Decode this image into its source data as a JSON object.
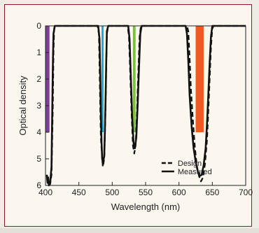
{
  "chart_data": {
    "type": "line",
    "title": "",
    "xlabel": "Wavelength (nm)",
    "ylabel": "Optical density",
    "xlim": [
      400,
      700
    ],
    "ylim": [
      0,
      6
    ],
    "y_inverted": true,
    "x_ticks": [
      400,
      450,
      500,
      550,
      600,
      650,
      700
    ],
    "y_ticks": [
      0,
      1,
      2,
      3,
      4,
      5,
      6
    ],
    "grid": false,
    "legend_position": "bottom-right",
    "series": [
      {
        "name": "Design",
        "style": "dashed",
        "color": "#111111",
        "points": [
          [
            405,
            6.0
          ],
          [
            407,
            5.95
          ],
          [
            409,
            5.6
          ],
          [
            411,
            3.0
          ],
          [
            412,
            1.0
          ],
          [
            413,
            0.1
          ],
          [
            414,
            0.0
          ],
          [
            478,
            0.0
          ],
          [
            480,
            0.3
          ],
          [
            481,
            1.5
          ],
          [
            482,
            3.0
          ],
          [
            483,
            4.2
          ],
          [
            485,
            5.0
          ],
          [
            486,
            5.3
          ],
          [
            488,
            5.0
          ],
          [
            489,
            4.2
          ],
          [
            490,
            3.0
          ],
          [
            491,
            1.5
          ],
          [
            492,
            0.3
          ],
          [
            494,
            0.0
          ],
          [
            523,
            0.0
          ],
          [
            525,
            0.4
          ],
          [
            527,
            1.8
          ],
          [
            529,
            3.3
          ],
          [
            531,
            4.5
          ],
          [
            533,
            4.8
          ],
          [
            535,
            4.5
          ],
          [
            537,
            3.3
          ],
          [
            539,
            1.8
          ],
          [
            541,
            0.4
          ],
          [
            543,
            0.0
          ],
          [
            612,
            0.0
          ],
          [
            614,
            0.2
          ],
          [
            616,
            1.2
          ],
          [
            618,
            2.4
          ],
          [
            621,
            3.6
          ],
          [
            624,
            4.6
          ],
          [
            627,
            5.3
          ],
          [
            630,
            5.65
          ],
          [
            633,
            5.85
          ],
          [
            636,
            5.7
          ],
          [
            639,
            5.2
          ],
          [
            642,
            4.3
          ],
          [
            644,
            3.2
          ],
          [
            646,
            2.0
          ],
          [
            648,
            0.8
          ],
          [
            650,
            0.1
          ],
          [
            652,
            0.0
          ],
          [
            700,
            0.0
          ]
        ]
      },
      {
        "name": "Measured",
        "style": "solid",
        "color": "#111111",
        "points": [
          [
            402,
            5.6
          ],
          [
            403,
            5.9
          ],
          [
            404,
            5.7
          ],
          [
            405,
            6.0
          ],
          [
            407,
            5.9
          ],
          [
            409,
            5.3
          ],
          [
            410,
            3.5
          ],
          [
            411,
            1.5
          ],
          [
            412,
            0.3
          ],
          [
            414,
            0.0
          ],
          [
            479,
            0.0
          ],
          [
            481,
            0.5
          ],
          [
            482,
            1.8
          ],
          [
            483,
            3.3
          ],
          [
            484,
            4.4
          ],
          [
            485,
            5.0
          ],
          [
            486,
            5.15
          ],
          [
            488,
            4.9
          ],
          [
            489,
            4.0
          ],
          [
            490,
            2.8
          ],
          [
            491,
            1.3
          ],
          [
            492,
            0.2
          ],
          [
            494,
            0.0
          ],
          [
            524,
            0.0
          ],
          [
            526,
            0.5
          ],
          [
            528,
            2.0
          ],
          [
            530,
            3.5
          ],
          [
            532,
            4.4
          ],
          [
            534,
            4.6
          ],
          [
            536,
            4.2
          ],
          [
            538,
            3.0
          ],
          [
            540,
            1.6
          ],
          [
            542,
            0.3
          ],
          [
            544,
            0.0
          ],
          [
            610,
            0.0
          ],
          [
            612,
            0.3
          ],
          [
            614,
            1.3
          ],
          [
            616,
            2.6
          ],
          [
            619,
            3.8
          ],
          [
            622,
            4.6
          ],
          [
            625,
            5.1
          ],
          [
            628,
            5.45
          ],
          [
            631,
            5.65
          ],
          [
            634,
            5.6
          ],
          [
            637,
            5.25
          ],
          [
            640,
            4.6
          ],
          [
            642,
            3.7
          ],
          [
            644,
            2.6
          ],
          [
            646,
            1.4
          ],
          [
            648,
            0.4
          ],
          [
            650,
            0.0
          ],
          [
            700,
            0.0
          ]
        ]
      }
    ],
    "bands": [
      {
        "color": "#7d3f98",
        "x_from": 400,
        "x_to": 406,
        "y_from": 0,
        "y_to": 4
      },
      {
        "color": "#16a8de",
        "x_from": 484,
        "x_to": 487,
        "y_from": 0,
        "y_to": 4
      },
      {
        "color": "#7ac143",
        "x_from": 531,
        "x_to": 535,
        "y_from": 0,
        "y_to": 4
      },
      {
        "color": "#ef5a24",
        "x_from": 625,
        "x_to": 637,
        "y_from": 0,
        "y_to": 4
      }
    ],
    "legend": [
      "Design",
      "Measured"
    ]
  },
  "colors": {
    "frame_border": "#8f1b1f",
    "background": "#fbf6ee"
  }
}
